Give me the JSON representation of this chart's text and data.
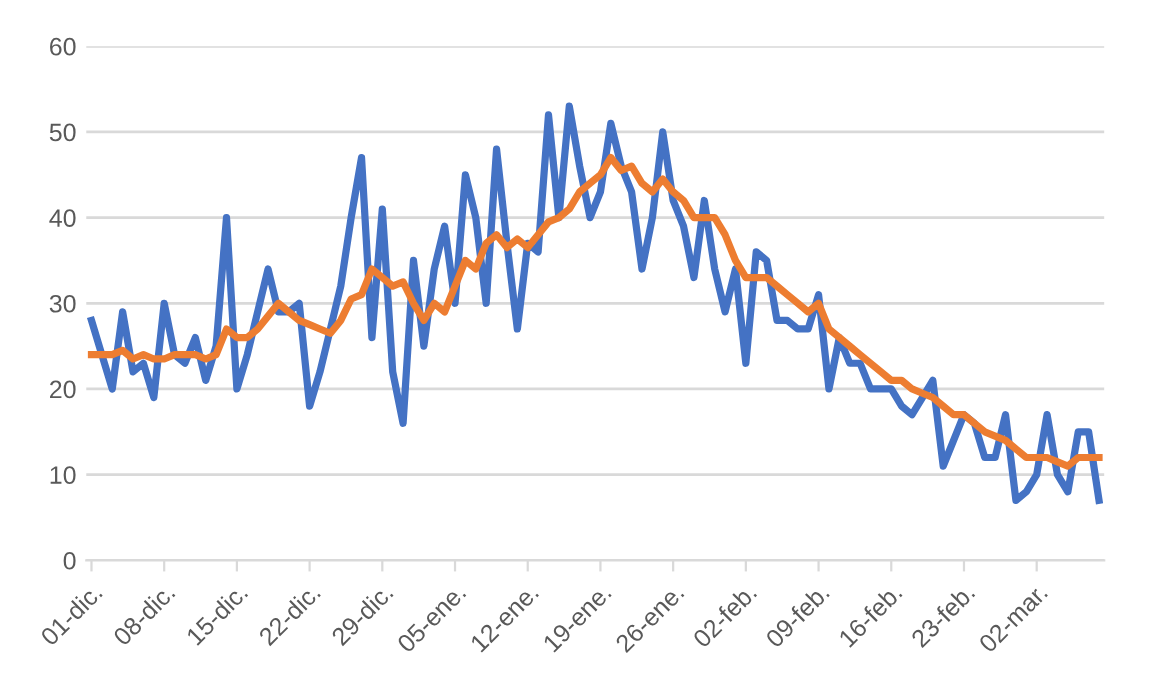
{
  "chart_data": {
    "type": "line",
    "categories": [
      "01-dic.",
      null,
      null,
      null,
      null,
      null,
      null,
      "08-dic.",
      null,
      null,
      null,
      null,
      null,
      null,
      "15-dic.",
      null,
      null,
      null,
      null,
      null,
      null,
      "22-dic.",
      null,
      null,
      null,
      null,
      null,
      null,
      "29-dic.",
      null,
      null,
      null,
      null,
      null,
      null,
      "05-ene.",
      null,
      null,
      null,
      null,
      null,
      null,
      "12-ene.",
      null,
      null,
      null,
      null,
      null,
      null,
      "19-ene.",
      null,
      null,
      null,
      null,
      null,
      null,
      "26-ene.",
      null,
      null,
      null,
      null,
      null,
      null,
      "02-feb.",
      null,
      null,
      null,
      null,
      null,
      null,
      "09-feb.",
      null,
      null,
      null,
      null,
      null,
      null,
      "16-feb.",
      null,
      null,
      null,
      null,
      null,
      null,
      "23-feb.",
      null,
      null,
      null,
      null,
      null,
      null,
      "02-mar.",
      null,
      null,
      null,
      null,
      null,
      null
    ],
    "series": [
      {
        "color": "#4472c4",
        "values": [
          28,
          24,
          20,
          29,
          22,
          23,
          19,
          30,
          24,
          23,
          26,
          21,
          25,
          40,
          20,
          24,
          29,
          34,
          29,
          29,
          30,
          18,
          22,
          27,
          32,
          40,
          47,
          26,
          41,
          22,
          16,
          35,
          25,
          34,
          39,
          30,
          45,
          40,
          30,
          48,
          37,
          27,
          37,
          36,
          52,
          40,
          53,
          46,
          40,
          43,
          51,
          46,
          43,
          34,
          40,
          50,
          42,
          39,
          33,
          42,
          34,
          29,
          34,
          23,
          36,
          35,
          28,
          28,
          27,
          27,
          31,
          20,
          26,
          23,
          23,
          20,
          20,
          20,
          18,
          17,
          19,
          21,
          11,
          14,
          17,
          16,
          12,
          12,
          17,
          7,
          8,
          10,
          17,
          10,
          8,
          15,
          15,
          7
        ]
      },
      {
        "color": "#ed7d31",
        "values": [
          24,
          24,
          24,
          24.5,
          23.5,
          24,
          23.5,
          23.5,
          24,
          24,
          24,
          23.5,
          24,
          27,
          26,
          26,
          27,
          28.5,
          30,
          29,
          28,
          27.5,
          27,
          26.5,
          28,
          30.5,
          31,
          34,
          33,
          32,
          32.5,
          30,
          28,
          30,
          29,
          32,
          35,
          34,
          37,
          38,
          36.5,
          37.5,
          36.5,
          38,
          39.5,
          40,
          41,
          43,
          44,
          45,
          47,
          45.5,
          46,
          44,
          43,
          44.5,
          43,
          42,
          40,
          40,
          40,
          38,
          35,
          33,
          33,
          33,
          32,
          31,
          30,
          29,
          30,
          27,
          26,
          25,
          24,
          23,
          22,
          21,
          21,
          20,
          19.5,
          19,
          18,
          17,
          17,
          16,
          15,
          14.5,
          14,
          13,
          12,
          12,
          12,
          11.5,
          11,
          12,
          12,
          12
        ]
      }
    ],
    "ylim": [
      0,
      60
    ],
    "yticks": [
      0,
      10,
      20,
      30,
      40,
      50,
      60
    ],
    "grid": "y",
    "legend": false,
    "marker": "none",
    "line_style": "solid"
  }
}
